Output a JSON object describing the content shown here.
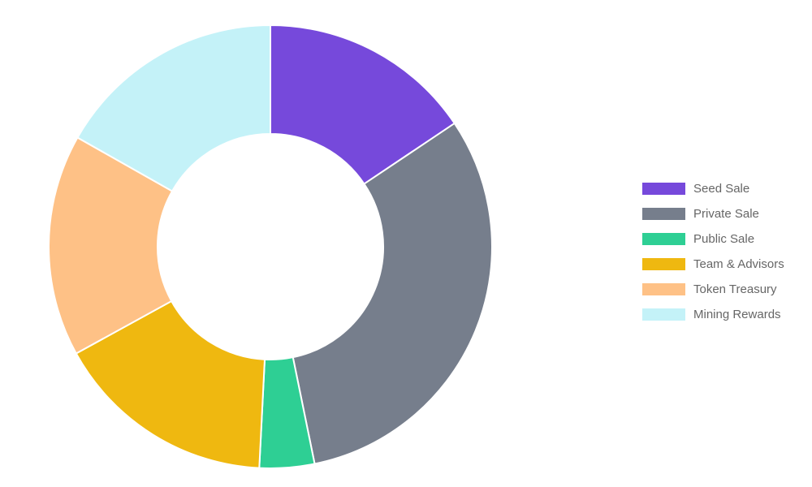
{
  "chart_data": {
    "type": "doughnut",
    "title": "",
    "slices": [
      {
        "label": "Seed Sale",
        "value": 15.6,
        "color": "#7649DB"
      },
      {
        "label": "Private Sale",
        "value": 31.2,
        "color": "#767E8C"
      },
      {
        "label": "Public Sale",
        "value": 4.0,
        "color": "#2ECF94"
      },
      {
        "label": "Team & Advisors",
        "value": 16.2,
        "color": "#EFB810"
      },
      {
        "label": "Token Treasury",
        "value": 16.2,
        "color": "#FEC186"
      },
      {
        "label": "Mining Rewards",
        "value": 16.8,
        "color": "#C4F2F8"
      }
    ],
    "legend": "right",
    "slice_border_color": "#FFFFFF"
  }
}
